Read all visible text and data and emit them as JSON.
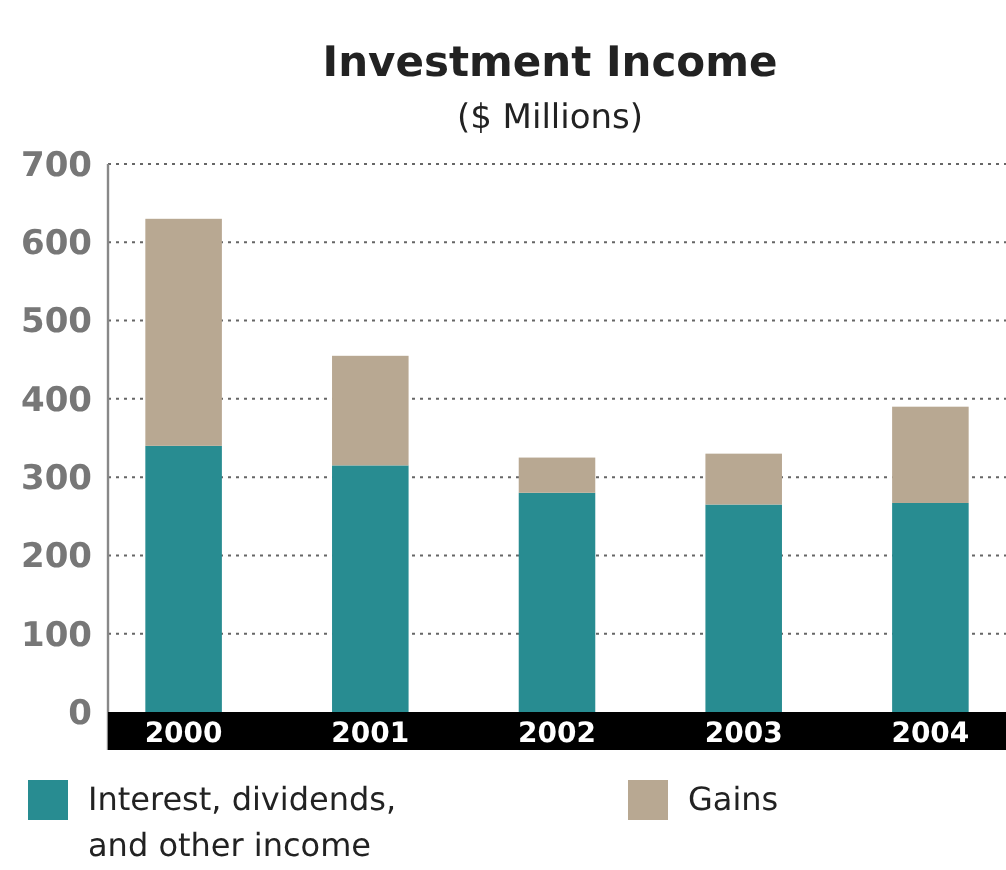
{
  "chart_data": {
    "type": "bar",
    "title": "Investment Income",
    "subtitle": "($ Millions)",
    "categories": [
      "2000",
      "2001",
      "2002",
      "2003",
      "2004"
    ],
    "stacked": true,
    "series": [
      {
        "name": "Interest, dividends,\nand other income",
        "color": "#288c91",
        "values": [
          340,
          315,
          280,
          265,
          267
        ]
      },
      {
        "name": "Gains",
        "color": "#b8a892",
        "values": [
          290,
          140,
          45,
          65,
          123
        ]
      }
    ],
    "ylim": [
      0,
      700
    ],
    "yticks": [
      0,
      100,
      200,
      300,
      400,
      500,
      600,
      700
    ],
    "grid": "y",
    "legend": "bottom"
  }
}
